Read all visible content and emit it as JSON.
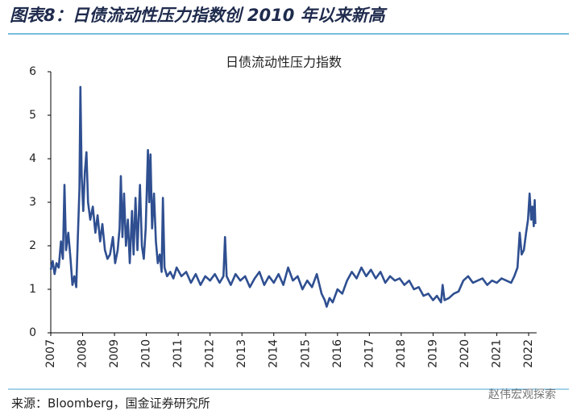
{
  "header": {
    "title": "图表8：日债流动性压力指数创 2010 年以来新高"
  },
  "chart_data": {
    "type": "line",
    "title": "日债流动性压力指数",
    "x": [
      2007.0,
      2007.06,
      2007.12,
      2007.18,
      2007.25,
      2007.32,
      2007.38,
      2007.43,
      2007.48,
      2007.55,
      2007.62,
      2007.68,
      2007.74,
      2007.8,
      2007.85,
      2007.9,
      2007.93,
      2007.97,
      2008.02,
      2008.07,
      2008.12,
      2008.17,
      2008.24,
      2008.32,
      2008.4,
      2008.47,
      2008.55,
      2008.62,
      2008.7,
      2008.78,
      2008.86,
      2008.95,
      2009.02,
      2009.1,
      2009.16,
      2009.2,
      2009.25,
      2009.3,
      2009.36,
      2009.42,
      2009.48,
      2009.55,
      2009.6,
      2009.66,
      2009.72,
      2009.8,
      2009.86,
      2009.92,
      2009.98,
      2010.05,
      2010.09,
      2010.13,
      2010.18,
      2010.24,
      2010.3,
      2010.36,
      2010.42,
      2010.48,
      2010.52,
      2010.57,
      2010.65,
      2010.75,
      2010.85,
      2010.95,
      2011.1,
      2011.25,
      2011.4,
      2011.55,
      2011.7,
      2011.85,
      2012.0,
      2012.15,
      2012.3,
      2012.42,
      2012.47,
      2012.52,
      2012.65,
      2012.8,
      2012.95,
      2013.1,
      2013.25,
      2013.4,
      2013.55,
      2013.7,
      2013.85,
      2014.0,
      2014.15,
      2014.3,
      2014.45,
      2014.6,
      2014.75,
      2014.9,
      2015.05,
      2015.2,
      2015.35,
      2015.5,
      2015.6,
      2015.66,
      2015.75,
      2015.85,
      2016.0,
      2016.15,
      2016.3,
      2016.45,
      2016.6,
      2016.75,
      2016.9,
      2017.05,
      2017.2,
      2017.35,
      2017.5,
      2017.65,
      2017.8,
      2017.95,
      2018.1,
      2018.25,
      2018.4,
      2018.55,
      2018.7,
      2018.85,
      2019.0,
      2019.12,
      2019.25,
      2019.3,
      2019.36,
      2019.5,
      2019.65,
      2019.8,
      2019.95,
      2020.1,
      2020.25,
      2020.4,
      2020.55,
      2020.7,
      2020.85,
      2021.0,
      2021.15,
      2021.3,
      2021.45,
      2021.55,
      2021.65,
      2021.72,
      2021.78,
      2021.85,
      2021.92,
      2021.98,
      2022.03,
      2022.08,
      2022.12,
      2022.16,
      2022.19,
      2022.21
    ],
    "values": [
      1.45,
      1.65,
      1.35,
      1.6,
      1.5,
      2.1,
      1.7,
      3.4,
      1.9,
      2.3,
      1.7,
      1.1,
      1.3,
      1.05,
      2.2,
      3.3,
      5.65,
      3.6,
      2.8,
      3.7,
      4.15,
      3.0,
      2.6,
      2.9,
      2.3,
      2.7,
      2.1,
      2.5,
      1.9,
      1.7,
      1.8,
      2.2,
      1.6,
      1.9,
      2.4,
      3.6,
      2.2,
      3.2,
      2.0,
      2.6,
      1.6,
      2.8,
      1.8,
      3.1,
      1.9,
      3.4,
      2.0,
      1.7,
      2.4,
      4.2,
      3.0,
      4.1,
      2.4,
      3.2,
      2.1,
      1.6,
      1.8,
      1.4,
      3.1,
      1.5,
      1.3,
      1.4,
      1.25,
      1.5,
      1.3,
      1.4,
      1.15,
      1.35,
      1.1,
      1.3,
      1.2,
      1.35,
      1.15,
      1.3,
      2.2,
      1.3,
      1.1,
      1.35,
      1.2,
      1.3,
      1.05,
      1.25,
      1.4,
      1.1,
      1.3,
      1.15,
      1.35,
      1.1,
      1.5,
      1.2,
      1.3,
      1.0,
      1.2,
      1.05,
      1.35,
      0.9,
      0.75,
      0.6,
      0.8,
      0.7,
      1.0,
      0.9,
      1.2,
      1.4,
      1.25,
      1.5,
      1.3,
      1.45,
      1.25,
      1.4,
      1.15,
      1.3,
      1.2,
      1.25,
      1.1,
      1.2,
      1.0,
      1.05,
      0.85,
      0.9,
      0.75,
      0.85,
      0.7,
      1.1,
      0.75,
      0.8,
      0.9,
      0.95,
      1.2,
      1.3,
      1.15,
      1.2,
      1.25,
      1.1,
      1.2,
      1.15,
      1.25,
      1.2,
      1.15,
      1.3,
      1.5,
      2.3,
      1.8,
      1.9,
      2.3,
      2.6,
      3.2,
      2.6,
      2.9,
      2.45,
      3.05,
      2.5
    ],
    "color": "#2f4f91",
    "xlim": [
      2007,
      2022.25
    ],
    "xticks": [
      2007,
      2008,
      2009,
      2010,
      2011,
      2012,
      2013,
      2014,
      2015,
      2016,
      2017,
      2018,
      2019,
      2020,
      2021,
      2022
    ],
    "ylim": [
      0,
      6
    ],
    "yticks": [
      0,
      1,
      2,
      3,
      4,
      5,
      6
    ],
    "grid": false
  },
  "source": "来源：Bloomberg，国金证券研究所",
  "watermark": "赵伟宏观探索"
}
